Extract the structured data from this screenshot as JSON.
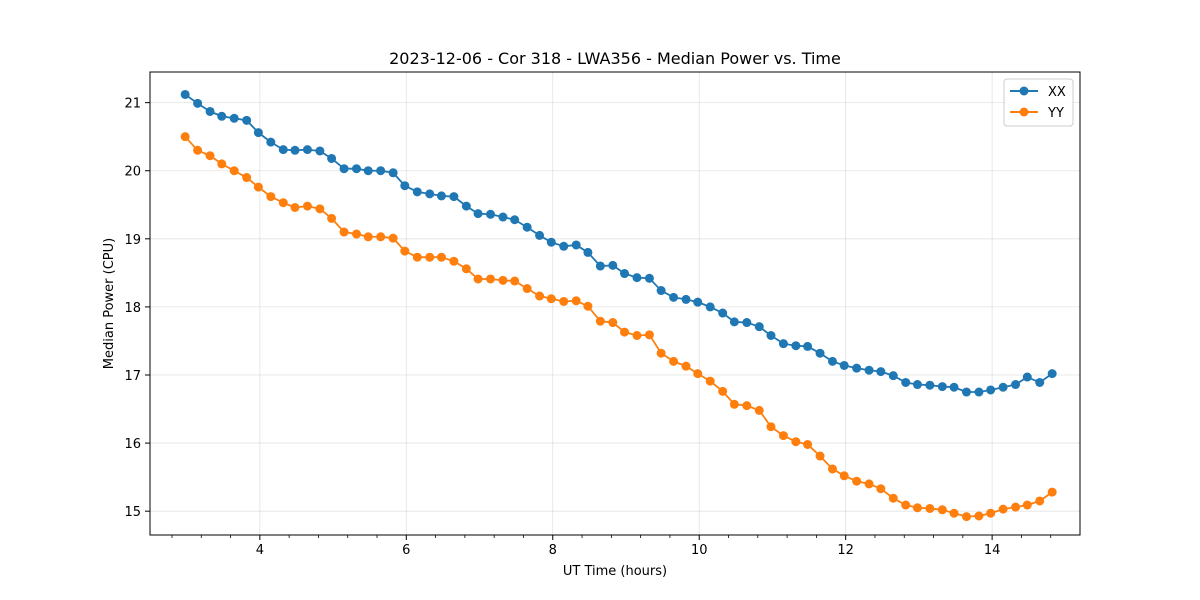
{
  "chart_data": {
    "type": "line",
    "title": "2023-12-06 - Cor 318 - LWA356 - Median Power vs. Time",
    "xlabel": "UT Time (hours)",
    "ylabel": "Median Power (CPU)",
    "xlim": [
      2.5,
      15.2
    ],
    "ylim": [
      14.65,
      21.45
    ],
    "xticks": [
      4,
      6,
      8,
      10,
      12,
      14
    ],
    "yticks": [
      15,
      16,
      17,
      18,
      19,
      20,
      21
    ],
    "grid": true,
    "legend_position": "top-right",
    "x": [
      2.98,
      3.15,
      3.32,
      3.48,
      3.65,
      3.82,
      3.98,
      4.15,
      4.32,
      4.48,
      4.65,
      4.82,
      4.98,
      5.15,
      5.32,
      5.48,
      5.65,
      5.82,
      5.98,
      6.15,
      6.32,
      6.48,
      6.65,
      6.82,
      6.98,
      7.15,
      7.32,
      7.48,
      7.65,
      7.82,
      7.98,
      8.15,
      8.32,
      8.48,
      8.65,
      8.82,
      8.98,
      9.15,
      9.32,
      9.48,
      9.65,
      9.82,
      9.98,
      10.15,
      10.32,
      10.48,
      10.65,
      10.82,
      10.98,
      11.15,
      11.32,
      11.48,
      11.65,
      11.82,
      11.98,
      12.15,
      12.32,
      12.48,
      12.65,
      12.82,
      12.98,
      13.15,
      13.32,
      13.48,
      13.65,
      13.82,
      13.98,
      14.15,
      14.32,
      14.48,
      14.65,
      14.82
    ],
    "series": [
      {
        "name": "XX",
        "color": "#1f77b4",
        "values": [
          21.12,
          20.99,
          20.87,
          20.8,
          20.77,
          20.74,
          20.56,
          20.42,
          20.31,
          20.3,
          20.31,
          20.29,
          20.18,
          20.03,
          20.03,
          20.0,
          20.0,
          19.97,
          19.78,
          19.69,
          19.66,
          19.63,
          19.62,
          19.48,
          19.37,
          19.36,
          19.32,
          19.28,
          19.17,
          19.05,
          18.95,
          18.89,
          18.91,
          18.8,
          18.6,
          18.61,
          18.49,
          18.43,
          18.42,
          18.24,
          18.14,
          18.11,
          18.07,
          18.0,
          17.91,
          17.78,
          17.77,
          17.71,
          17.58,
          17.46,
          17.43,
          17.42,
          17.32,
          17.2,
          17.14,
          17.1,
          17.07,
          17.05,
          16.99,
          16.89,
          16.86,
          16.85,
          16.83,
          16.82,
          16.75,
          16.75,
          16.78,
          16.82,
          16.86,
          16.97,
          16.89,
          17.02
        ]
      },
      {
        "name": "YY",
        "color": "#ff7f0e",
        "values": [
          20.5,
          20.3,
          20.22,
          20.1,
          20.0,
          19.9,
          19.76,
          19.62,
          19.53,
          19.46,
          19.48,
          19.44,
          19.3,
          19.1,
          19.07,
          19.03,
          19.03,
          19.01,
          18.82,
          18.73,
          18.73,
          18.73,
          18.67,
          18.56,
          18.41,
          18.41,
          18.39,
          18.38,
          18.27,
          18.16,
          18.12,
          18.08,
          18.09,
          18.01,
          17.79,
          17.77,
          17.63,
          17.58,
          17.59,
          17.32,
          17.2,
          17.13,
          17.02,
          16.91,
          16.76,
          16.57,
          16.55,
          16.48,
          16.24,
          16.11,
          16.02,
          15.98,
          15.81,
          15.62,
          15.52,
          15.44,
          15.4,
          15.33,
          15.19,
          15.09,
          15.05,
          15.04,
          15.02,
          14.97,
          14.92,
          14.93,
          14.97,
          15.03,
          15.06,
          15.09,
          15.15,
          15.28
        ]
      }
    ]
  }
}
